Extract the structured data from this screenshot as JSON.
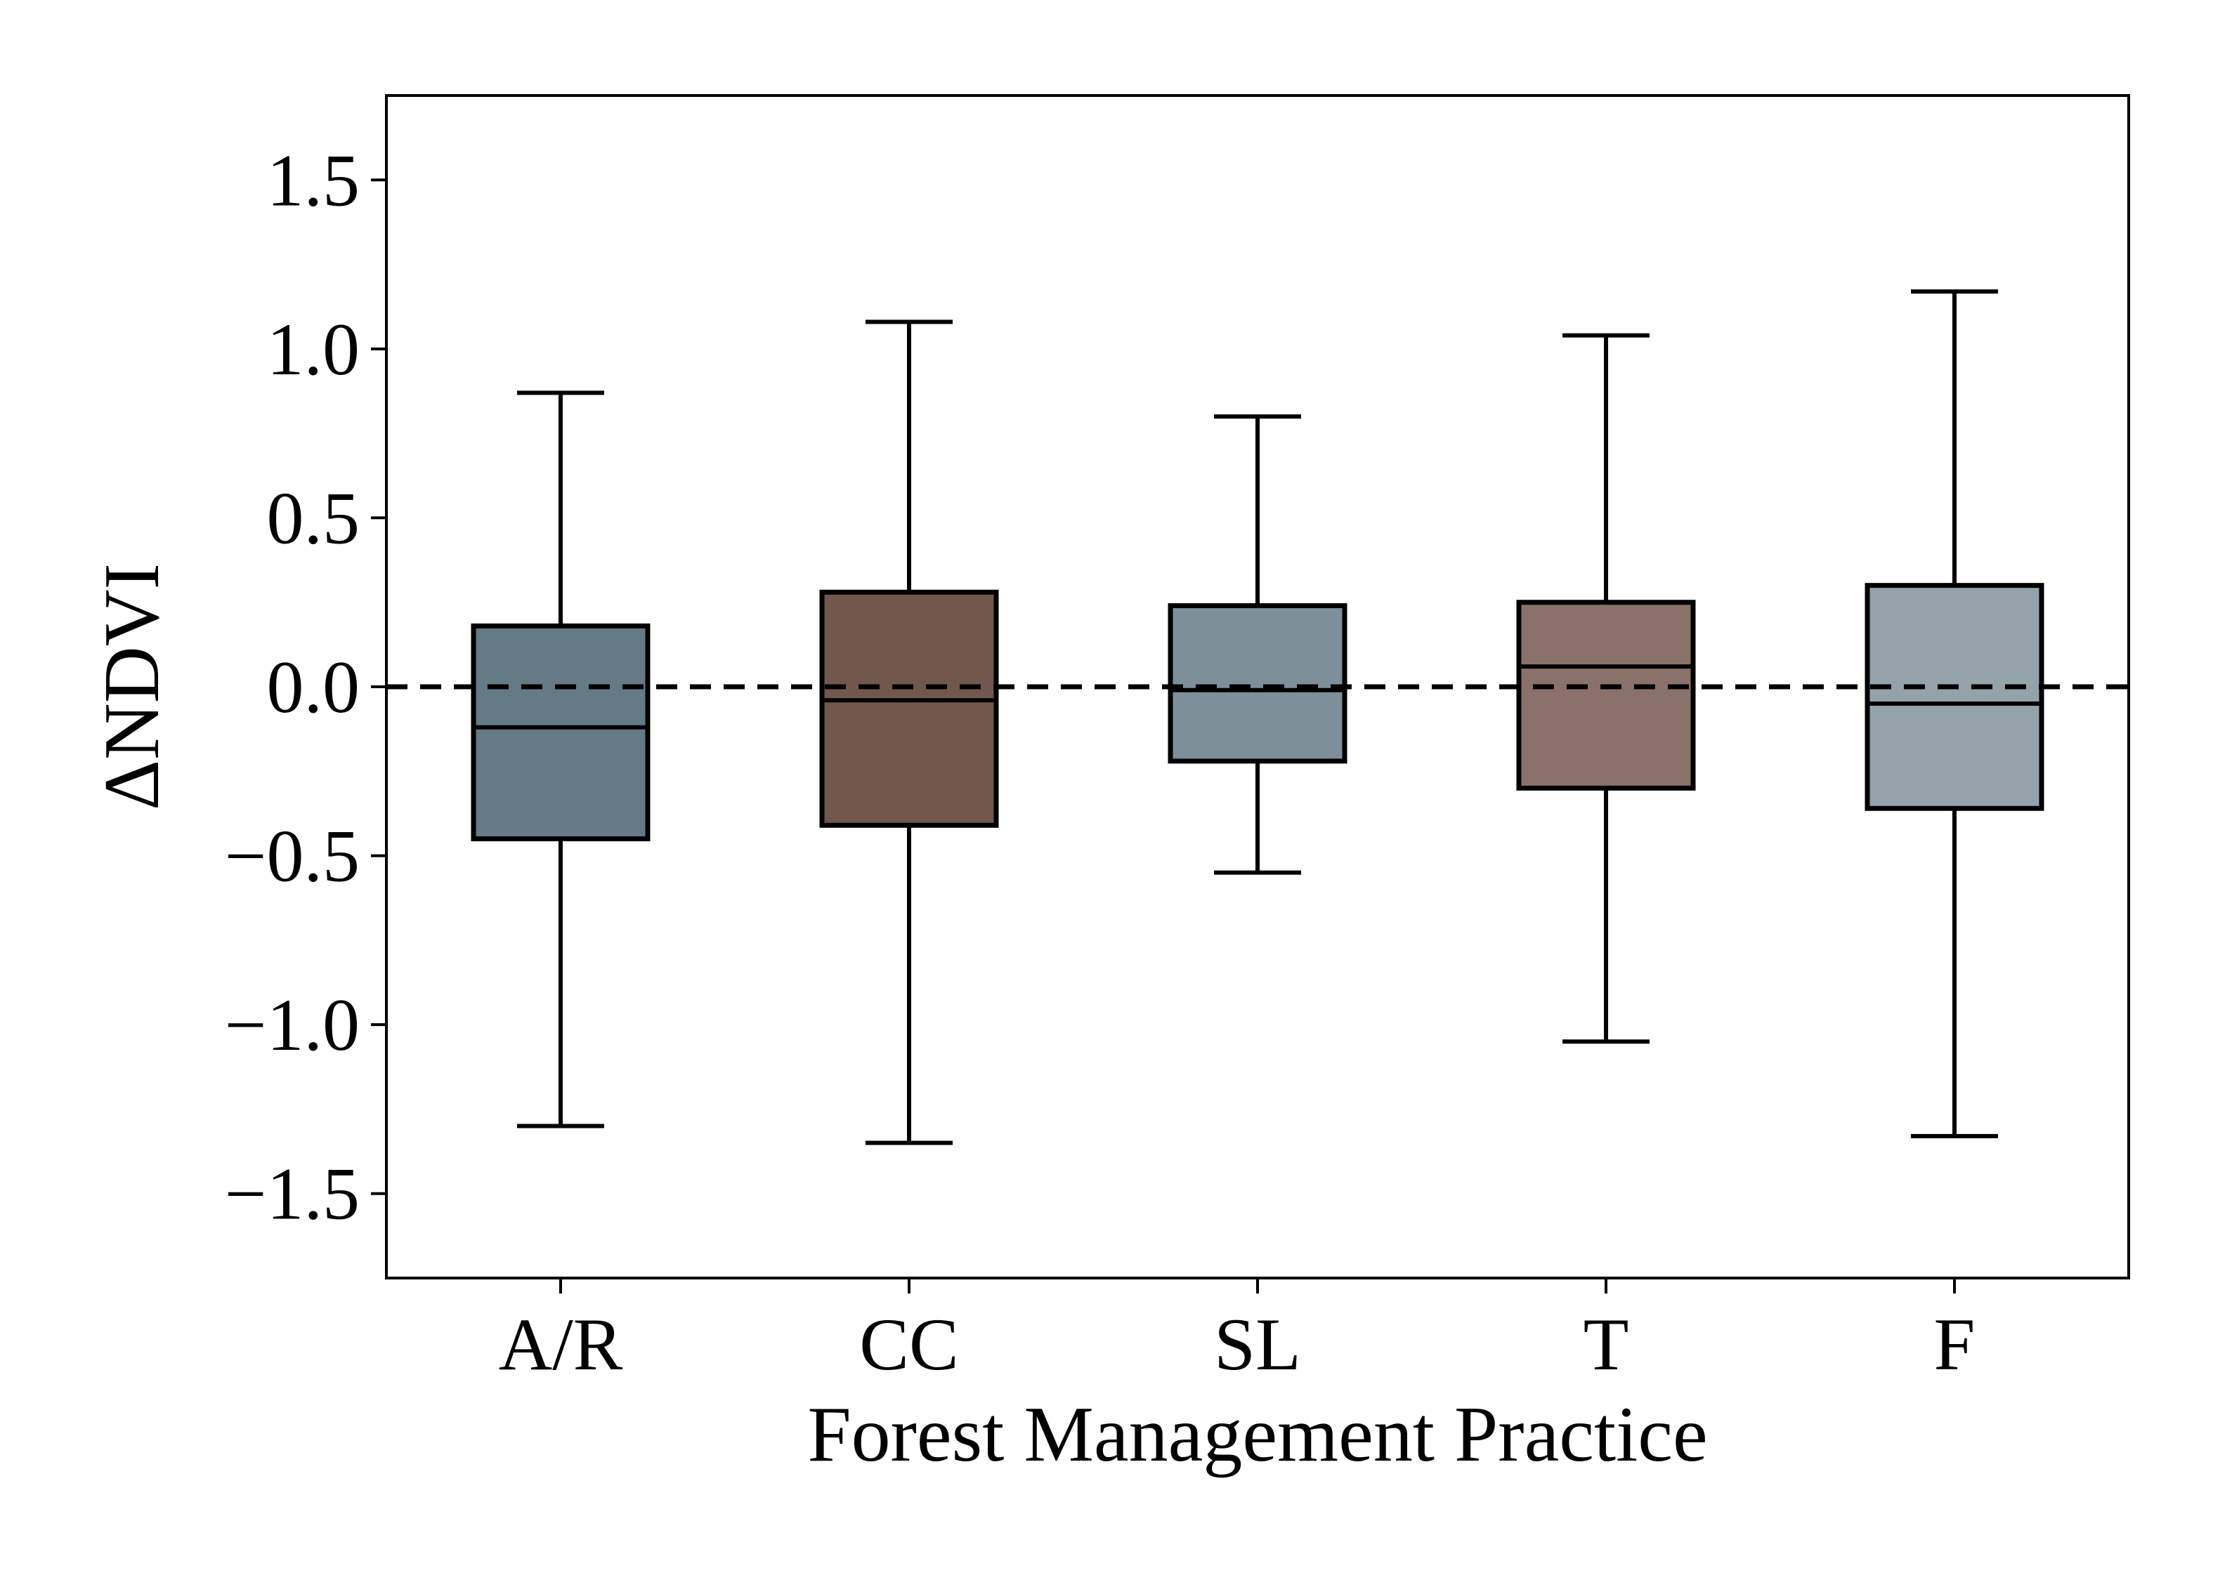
{
  "chart_data": {
    "type": "box",
    "title": "",
    "xlabel": "Forest Management Practice",
    "ylabel": "ΔNDVI",
    "ylim": [
      -1.75,
      1.75
    ],
    "yticks": [
      -1.5,
      -1.0,
      -0.5,
      0.0,
      0.5,
      1.0,
      1.5
    ],
    "ytick_labels": [
      "−1.5",
      "−1.0",
      "−0.5",
      "0.0",
      "0.5",
      "1.0",
      "1.5"
    ],
    "reference_line": {
      "y": 0.0,
      "style": "dashed"
    },
    "grid": false,
    "categories": [
      "A/R",
      "CC",
      "SL",
      "T",
      "F"
    ],
    "boxes": [
      {
        "category": "A/R",
        "whisker_low": -1.3,
        "q1": -0.45,
        "median": -0.12,
        "q3": 0.18,
        "whisker_high": 0.87,
        "color": "#647a85"
      },
      {
        "category": "CC",
        "whisker_low": -1.35,
        "q1": -0.41,
        "median": -0.04,
        "q3": 0.28,
        "whisker_high": 1.08,
        "color": "#72574d"
      },
      {
        "category": "SL",
        "whisker_low": -0.55,
        "q1": -0.22,
        "median": -0.01,
        "q3": 0.24,
        "whisker_high": 0.8,
        "color": "#7d8f99"
      },
      {
        "category": "T",
        "whisker_low": -1.05,
        "q1": -0.3,
        "median": 0.06,
        "q3": 0.25,
        "whisker_high": 1.04,
        "color": "#8a716a"
      },
      {
        "category": "F",
        "whisker_low": -1.33,
        "q1": -0.36,
        "median": -0.05,
        "q3": 0.3,
        "whisker_high": 1.17,
        "color": "#94a2a9"
      }
    ]
  }
}
